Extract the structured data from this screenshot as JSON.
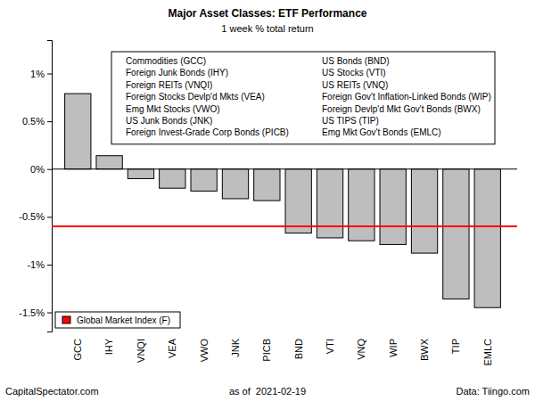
{
  "chart_data": {
    "type": "bar",
    "title": "Major Asset Classes: ETF Performance",
    "subtitle": "1 week % total return",
    "categories": [
      "GCC",
      "IHY",
      "VNQI",
      "VEA",
      "VWO",
      "JNK",
      "PICB",
      "BND",
      "VTI",
      "VNQ",
      "WIP",
      "BWX",
      "TIP",
      "EMLC"
    ],
    "values": [
      0.79,
      0.14,
      -0.1,
      -0.2,
      -0.23,
      -0.31,
      -0.33,
      -0.67,
      -0.72,
      -0.75,
      -0.79,
      -0.88,
      -1.36,
      -1.45
    ],
    "color": "#bebebe",
    "ylim": [
      -1.7,
      1.35
    ],
    "yticks": [
      {
        "value": -1.5,
        "label": "-1.5%"
      },
      {
        "value": -1,
        "label": "-1%"
      },
      {
        "value": -0.5,
        "label": "-0.5%"
      },
      {
        "value": 0,
        "label": "0%"
      },
      {
        "value": 0.5,
        "label": "0.5%"
      },
      {
        "value": 1,
        "label": "1%"
      }
    ],
    "grid": false,
    "legend": "bottom-left",
    "reference_line": {
      "name": "Global Market Index (F)",
      "value": -0.6,
      "color": "#ff0000"
    },
    "annotations": [
      "Commodities (GCC)",
      "Foreign Junk Bonds (IHY)",
      "Foreign REITs (VNQI)",
      "Foreign Stocks Devlp'd Mkts (VEA)",
      "Emg Mkt Stocks (VWO)",
      "US Junk Bonds (JNK)",
      "Foreign Invest-Grade Corp Bonds (PICB)",
      "US Bonds (BND)",
      "US Stocks (VTI)",
      "US REITs (VNQ)",
      "Foreign Gov't Inflation-Linked Bonds (WIP)",
      "Foreign Devlp'd Mkt Gov't Bonds (BWX)",
      "US TIPS (TIP)",
      "Emg Mkt Gov't Bonds (EMLC)"
    ],
    "credit": "CapitalSpectator.com",
    "date_note": "as of  2021-02-19",
    "source": "Data: Tiingo.com"
  }
}
